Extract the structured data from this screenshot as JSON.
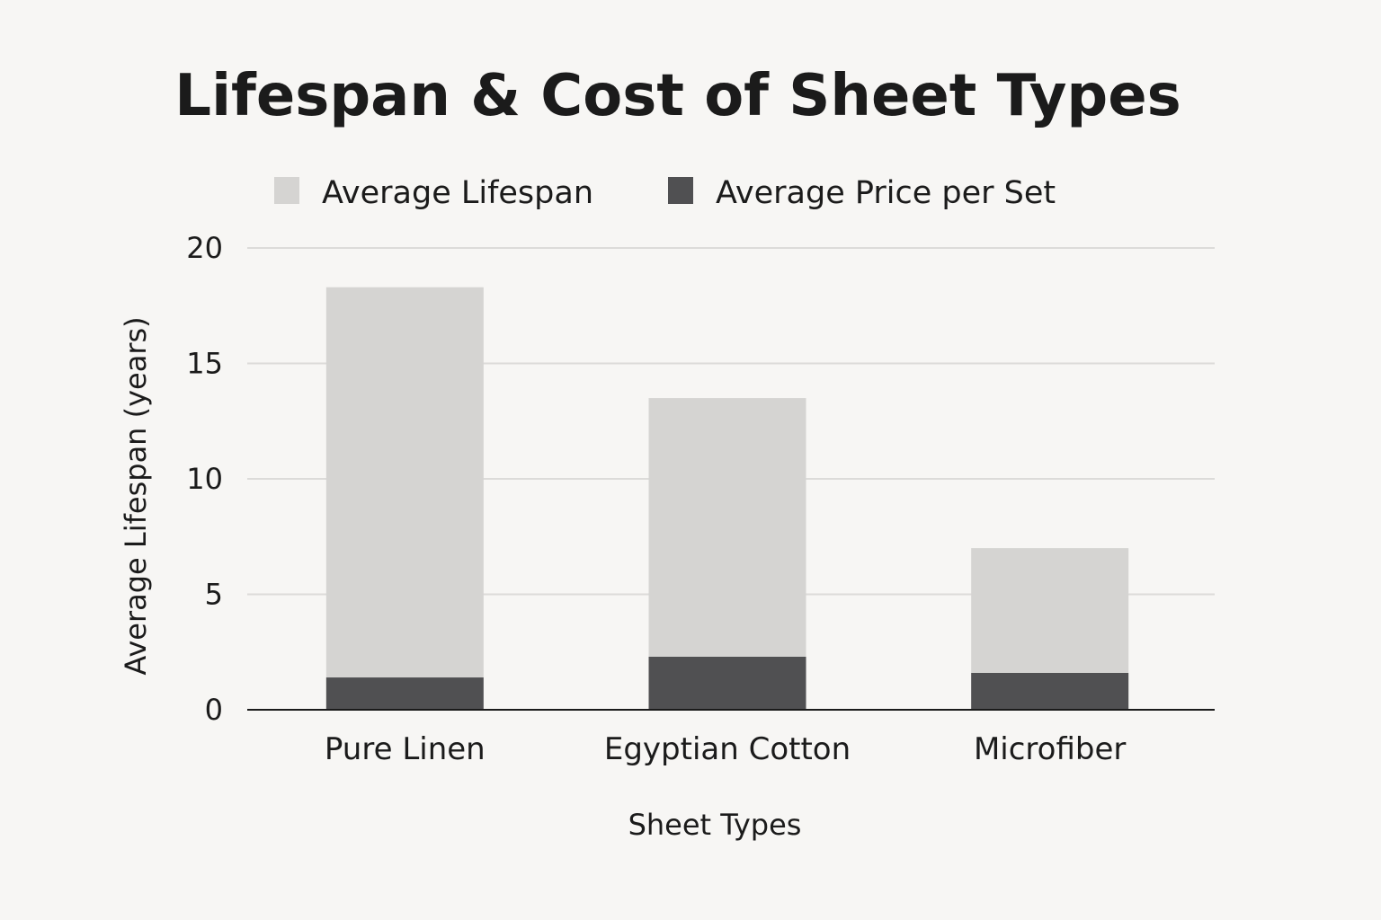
{
  "chart_data": {
    "type": "bar",
    "stacked": true,
    "title": "Lifespan & Cost of Sheet Types",
    "xlabel": "Sheet Types",
    "ylabel": "Average Lifespan (years)",
    "categories": [
      "Pure Linen",
      "Egyptian Cotton",
      "Microfiber"
    ],
    "series": [
      {
        "name": "Average Price per Set",
        "color": "#505052",
        "values": [
          1.4,
          2.3,
          1.6
        ]
      },
      {
        "name": "Average Lifespan",
        "color": "#d5d4d2",
        "values": [
          16.9,
          11.2,
          5.4
        ]
      }
    ],
    "ylim": [
      0,
      20
    ],
    "yticks": [
      "0",
      "5",
      "10",
      "15",
      "20"
    ],
    "grid": true,
    "legend_position": "top"
  }
}
